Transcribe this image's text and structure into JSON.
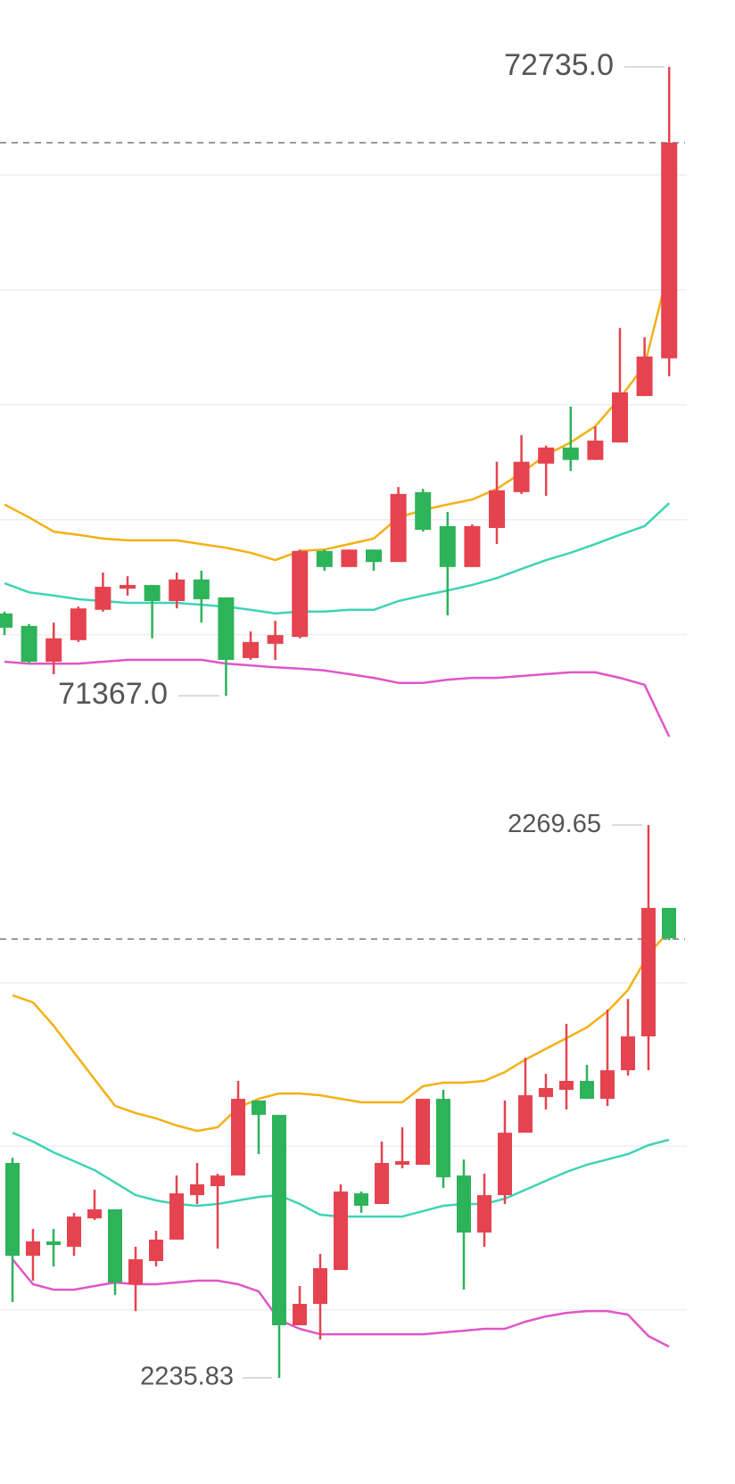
{
  "chart_data": [
    {
      "type": "candlestick",
      "ylim": [
        71270.3,
        72880.5
      ],
      "grid_lines": [
        71500,
        71750,
        72000,
        72250,
        72500
      ],
      "up_color": "#e5434f",
      "down_color": "#2db35a",
      "price_line": 72570,
      "open": [
        71546,
        71519,
        71441,
        71488,
        71554,
        71600,
        71608,
        71573,
        71620,
        71581,
        71449,
        71480,
        71495,
        71682,
        71647,
        71685,
        71658,
        71810,
        71736,
        71647,
        71732,
        71810,
        71872,
        71907,
        71880,
        71918,
        72019,
        72101
      ],
      "high": [
        71550,
        71523,
        71526,
        71561,
        71635,
        71627,
        71608,
        71635,
        71639,
        71581,
        71507,
        71530,
        71685,
        71685,
        71685,
        71685,
        71821,
        71817,
        71767,
        71740,
        71876,
        71934,
        71911,
        71996,
        71953,
        72167,
        72147,
        72735
      ],
      "low": [
        71499,
        71437,
        71414,
        71484,
        71550,
        71585,
        71492,
        71557,
        71526,
        71367,
        71445,
        71445,
        71492,
        71639,
        71647,
        71639,
        71658,
        71724,
        71542,
        71647,
        71697,
        71806,
        71802,
        71856,
        71880,
        71918,
        72019,
        72062
      ],
      "close": [
        71515,
        71441,
        71492,
        71557,
        71604,
        71608,
        71573,
        71620,
        71577,
        71445,
        71484,
        71499,
        71682,
        71647,
        71685,
        71658,
        71806,
        71728,
        71647,
        71736,
        71814,
        71876,
        71907,
        71880,
        71922,
        72027,
        72105,
        72570
      ],
      "lines": [
        {
          "color": "#f5b014",
          "values": [
            71783,
            71755,
            71724,
            71717,
            71709,
            71705,
            71705,
            71705,
            71697,
            71689,
            71678,
            71662,
            71682,
            71685,
            71697,
            71709,
            71755,
            71771,
            71783,
            71794,
            71817,
            71852,
            71891,
            71918,
            71953,
            72015,
            72085,
            72299
          ]
        },
        {
          "color": "#3fd3b6",
          "values": [
            71612,
            71592,
            71585,
            71577,
            71573,
            71569,
            71569,
            71569,
            71565,
            71561,
            71554,
            71546,
            71550,
            71550,
            71554,
            71554,
            71573,
            71585,
            71596,
            71608,
            71623,
            71643,
            71662,
            71678,
            71697,
            71717,
            71736,
            71786
          ]
        },
        {
          "color": "#e055c8",
          "values": [
            71441,
            71437,
            71437,
            71437,
            71441,
            71445,
            71445,
            71445,
            71445,
            71437,
            71433,
            71429,
            71426,
            71422,
            71414,
            71406,
            71395,
            71395,
            71402,
            71406,
            71406,
            71410,
            71414,
            71418,
            71418,
            71406,
            71391,
            71278
          ]
        }
      ],
      "annotations": [
        {
          "value": 72735,
          "label": "72735.0"
        },
        {
          "value": 71367,
          "label": "71367.0"
        }
      ]
    },
    {
      "type": "candlestick",
      "ylim": [
        2229.34,
        2274.02
      ],
      "grid_lines": [
        2240,
        2250,
        2260
      ],
      "up_color": "#e5434f",
      "down_color": "#2db35a",
      "price_line": 2262.67,
      "open": [
        2248.98,
        2243.3,
        2244.18,
        2243.85,
        2245.59,
        2246.14,
        2241.56,
        2242.98,
        2244.29,
        2247.01,
        2247.56,
        2248.21,
        2252.8,
        2251.92,
        2239.05,
        2240.36,
        2242.43,
        2247.12,
        2246.47,
        2248.87,
        2248.87,
        2252.9,
        2248.21,
        2244.72,
        2247.01,
        2250.83,
        2253.01,
        2253.45,
        2254.0,
        2252.9,
        2254.65,
        2256.72,
        2264.58
      ],
      "high": [
        2249.3,
        2244.94,
        2244.94,
        2245.92,
        2247.34,
        2246.14,
        2243.85,
        2244.83,
        2248.21,
        2248.98,
        2248.32,
        2254.0,
        2252.8,
        2251.92,
        2241.45,
        2243.41,
        2247.67,
        2247.23,
        2250.29,
        2251.16,
        2252.9,
        2253.45,
        2249.19,
        2248.32,
        2252.8,
        2255.41,
        2254.43,
        2257.49,
        2254.98,
        2258.36,
        2259.01,
        2269.65,
        2264.58
      ],
      "low": [
        2240.47,
        2241.78,
        2242.65,
        2243.3,
        2245.49,
        2240.9,
        2239.92,
        2242.65,
        2244.29,
        2246.47,
        2243.74,
        2248.21,
        2249.52,
        2235.83,
        2239.05,
        2238.18,
        2242.43,
        2245.92,
        2246.47,
        2248.65,
        2248.87,
        2247.45,
        2241.23,
        2243.85,
        2246.47,
        2250.83,
        2252.25,
        2252.25,
        2252.9,
        2252.47,
        2254.32,
        2254.65,
        2262.61
      ],
      "close": [
        2243.3,
        2244.18,
        2243.96,
        2245.7,
        2246.14,
        2241.67,
        2243.09,
        2244.29,
        2247.12,
        2247.67,
        2248.21,
        2252.9,
        2251.92,
        2239.05,
        2240.36,
        2242.54,
        2247.23,
        2246.36,
        2248.98,
        2249.09,
        2252.9,
        2248.1,
        2244.72,
        2247.01,
        2250.83,
        2253.12,
        2253.56,
        2254.0,
        2252.9,
        2254.65,
        2256.72,
        2264.58,
        2262.72
      ],
      "lines": [
        {
          "color": "#f5b014",
          "values": [
            2259.23,
            2258.8,
            2257.38,
            2255.74,
            2254.1,
            2252.47,
            2252.03,
            2251.7,
            2251.27,
            2250.94,
            2251.16,
            2252.36,
            2252.9,
            2253.23,
            2253.23,
            2253.12,
            2252.9,
            2252.69,
            2252.69,
            2252.69,
            2253.67,
            2253.89,
            2253.89,
            2254.0,
            2254.54,
            2255.3,
            2255.96,
            2256.61,
            2257.27,
            2258.25,
            2259.56,
            2261.74,
            2263.16
          ]
        },
        {
          "color": "#3fd3b6",
          "values": [
            2250.83,
            2250.29,
            2249.63,
            2249.09,
            2248.54,
            2247.78,
            2247.01,
            2246.69,
            2246.47,
            2246.36,
            2246.47,
            2246.69,
            2246.9,
            2247.01,
            2246.47,
            2245.81,
            2245.7,
            2245.7,
            2245.7,
            2245.7,
            2246.03,
            2246.36,
            2246.47,
            2246.47,
            2246.79,
            2247.34,
            2247.89,
            2248.43,
            2248.87,
            2249.19,
            2249.52,
            2250.07,
            2250.4
          ]
        },
        {
          "color": "#e055c8",
          "values": [
            2243.09,
            2241.56,
            2241.23,
            2241.23,
            2241.45,
            2241.67,
            2241.56,
            2241.56,
            2241.67,
            2241.78,
            2241.78,
            2241.56,
            2241.12,
            2239.38,
            2238.83,
            2238.5,
            2238.5,
            2238.5,
            2238.5,
            2238.5,
            2238.5,
            2238.61,
            2238.72,
            2238.83,
            2238.83,
            2239.27,
            2239.59,
            2239.81,
            2239.92,
            2239.92,
            2239.7,
            2238.39,
            2237.74
          ]
        }
      ],
      "annotations": [
        {
          "value": 2269.65,
          "label": "2269.65"
        },
        {
          "value": 2235.83,
          "label": "2235.83"
        }
      ]
    }
  ]
}
